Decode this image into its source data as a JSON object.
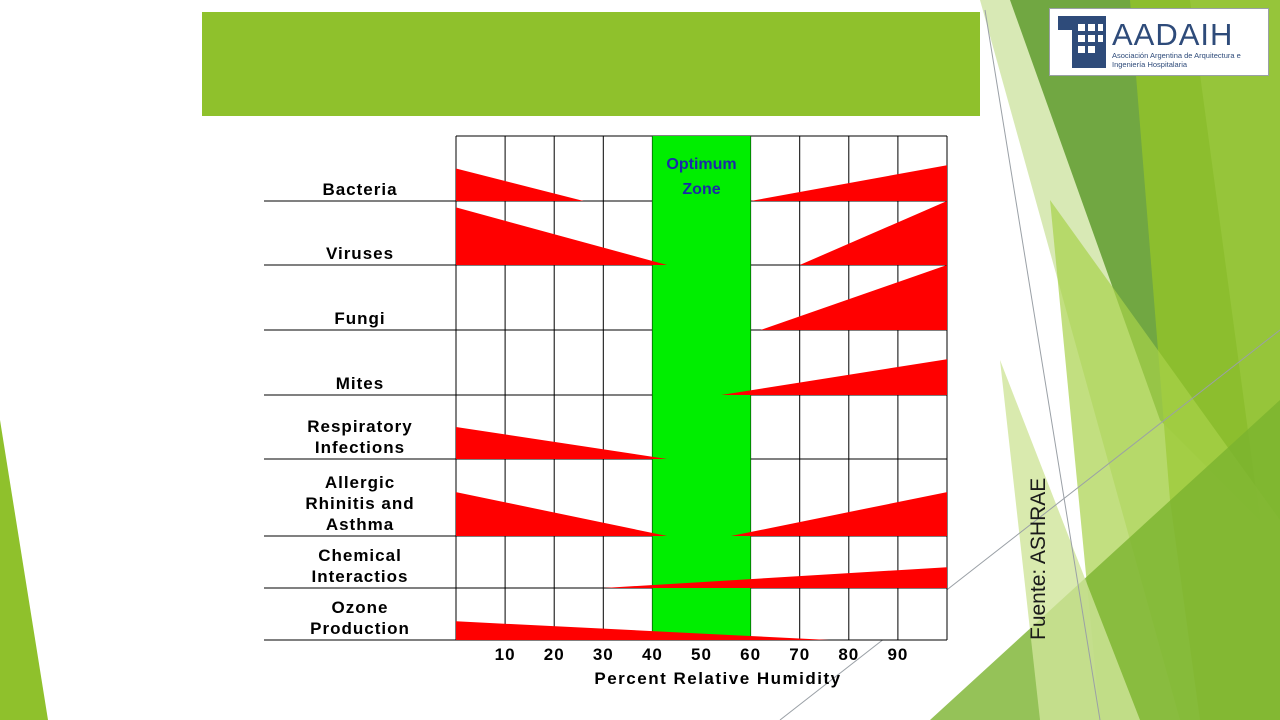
{
  "logo": {
    "name": "AADAIH",
    "subtitle": "Asociación Argentina de Arquitectura e Ingeniería Hospitalaria"
  },
  "source": "Fuente: ASHRAE",
  "colors": {
    "title_bar": "#8fc12c",
    "bar": "#ff0000",
    "optimum_zone": "#00ee00",
    "zone_label": "#1a2aa8"
  },
  "chart_data": {
    "type": "bar",
    "xlabel": "Percent Relative Humidity",
    "xlim": [
      0,
      100
    ],
    "x_ticks": [
      10,
      20,
      30,
      40,
      50,
      60,
      70,
      80,
      90
    ],
    "optimum_zone": {
      "label_lines": [
        "Optimum",
        "Zone"
      ],
      "range": [
        40,
        60
      ]
    },
    "categories": [
      {
        "lines": [
          "Bacteria"
        ],
        "low": {
          "zero_at": 26,
          "height_at_0": 0.5
        },
        "high": {
          "zero_at": 60,
          "height_at_100": 0.55
        }
      },
      {
        "lines": [
          "Viruses"
        ],
        "low": {
          "zero_at": 43,
          "height_at_0": 0.9
        },
        "high": {
          "zero_at": 70,
          "height_at_100": 1.0
        }
      },
      {
        "lines": [
          "Fungi"
        ],
        "low": null,
        "high": {
          "zero_at": 62,
          "height_at_100": 1.0
        }
      },
      {
        "lines": [
          "Mites"
        ],
        "low": null,
        "high": {
          "zero_at": 54,
          "height_at_100": 0.55
        }
      },
      {
        "lines": [
          "Respiratory",
          "Infections"
        ],
        "low": {
          "zero_at": 43,
          "height_at_0": 0.5
        },
        "high": null
      },
      {
        "lines": [
          "Allergic",
          "Rhinitis and",
          "Asthma"
        ],
        "low": {
          "zero_at": 43,
          "height_at_0": 0.57
        },
        "high": {
          "zero_at": 56,
          "height_at_100": 0.57
        }
      },
      {
        "lines": [
          "Chemical",
          "Interactios"
        ],
        "low": null,
        "high": {
          "zero_at": 30,
          "height_at_100": 0.4
        }
      },
      {
        "lines": [
          "Ozone",
          "Production"
        ],
        "low": {
          "zero_at": 76,
          "height_at_0": 0.36
        },
        "high": null
      }
    ]
  }
}
